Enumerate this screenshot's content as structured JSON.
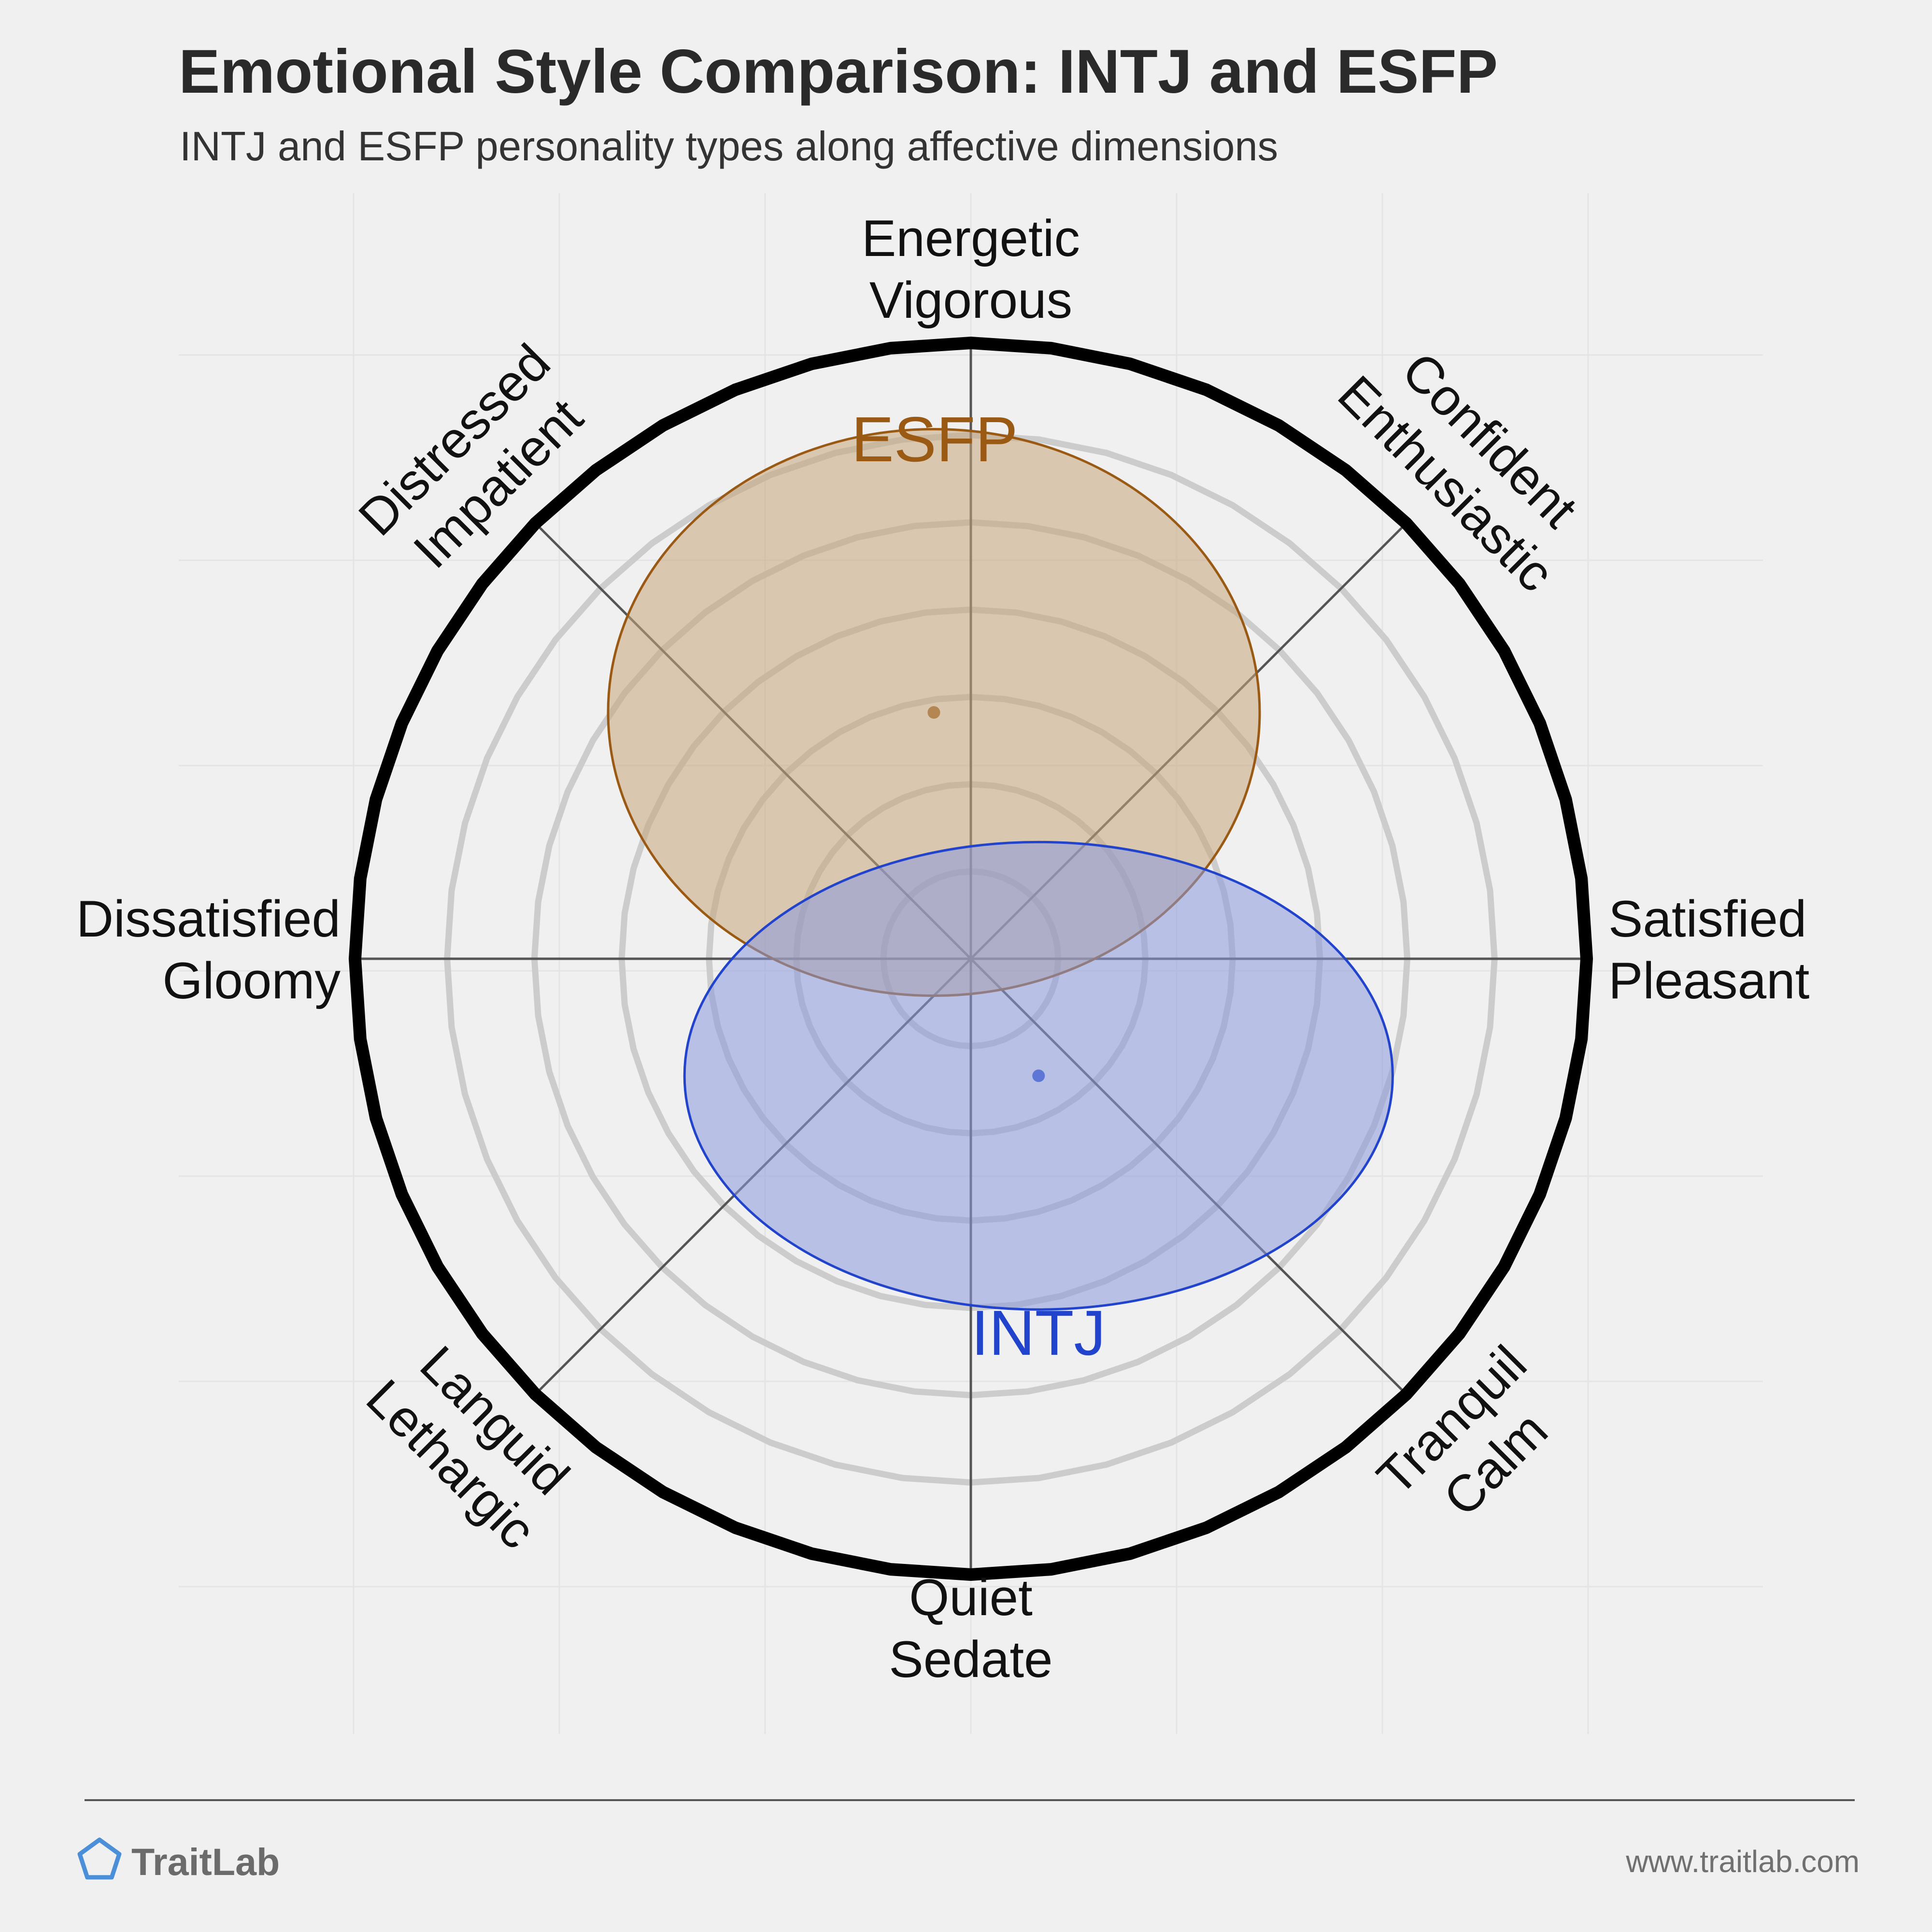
{
  "title": "Emotional Style Comparison: INTJ and ESFP",
  "subtitle": "INTJ and ESFP personality types along affective dimensions",
  "brand": {
    "name": "TraitLab",
    "url": "www.traitlab.com",
    "icon": "pentagon-icon"
  },
  "colors": {
    "background": "#f0f0f0",
    "esfp": "#9a5a14",
    "esfp_fill": "#c9a57c",
    "intj": "#2244cc",
    "intj_fill": "#8a99dd"
  },
  "chart_data": {
    "type": "scatter",
    "subtype": "circumplex",
    "x_axis": {
      "negative": "Dissatisfied Gloomy",
      "positive": "Satisfied Pleasant"
    },
    "y_axis": {
      "negative": "Quiet Sedate",
      "positive": "Energetic Vigorous"
    },
    "range": [
      -1,
      1
    ],
    "rings": 6,
    "axis_labels": [
      {
        "key": "top",
        "lines": [
          "Energetic",
          "Vigorous"
        ]
      },
      {
        "key": "top-right",
        "lines": [
          "Confident",
          "Enthusiastic"
        ]
      },
      {
        "key": "right",
        "lines": [
          "Satisfied",
          "Pleasant"
        ]
      },
      {
        "key": "bottom-right",
        "lines": [
          "Tranquil",
          "Calm"
        ]
      },
      {
        "key": "bottom",
        "lines": [
          "Quiet",
          "Sedate"
        ]
      },
      {
        "key": "bottom-left",
        "lines": [
          "Languid",
          "Lethargic"
        ]
      },
      {
        "key": "left",
        "lines": [
          "Dissatisfied",
          "Gloomy"
        ]
      },
      {
        "key": "top-left",
        "lines": [
          "Distressed",
          "Impatient"
        ]
      }
    ],
    "series": [
      {
        "name": "ESFP",
        "x": -0.06,
        "y": 0.4,
        "spread_x": 0.46,
        "spread_y": 0.4,
        "color": "#9a5a14",
        "fill": "#c9a57c"
      },
      {
        "name": "INTJ",
        "x": 0.11,
        "y": -0.19,
        "spread_x": 0.5,
        "spread_y": 0.33,
        "color": "#2244cc",
        "fill": "#8a99dd"
      }
    ]
  }
}
